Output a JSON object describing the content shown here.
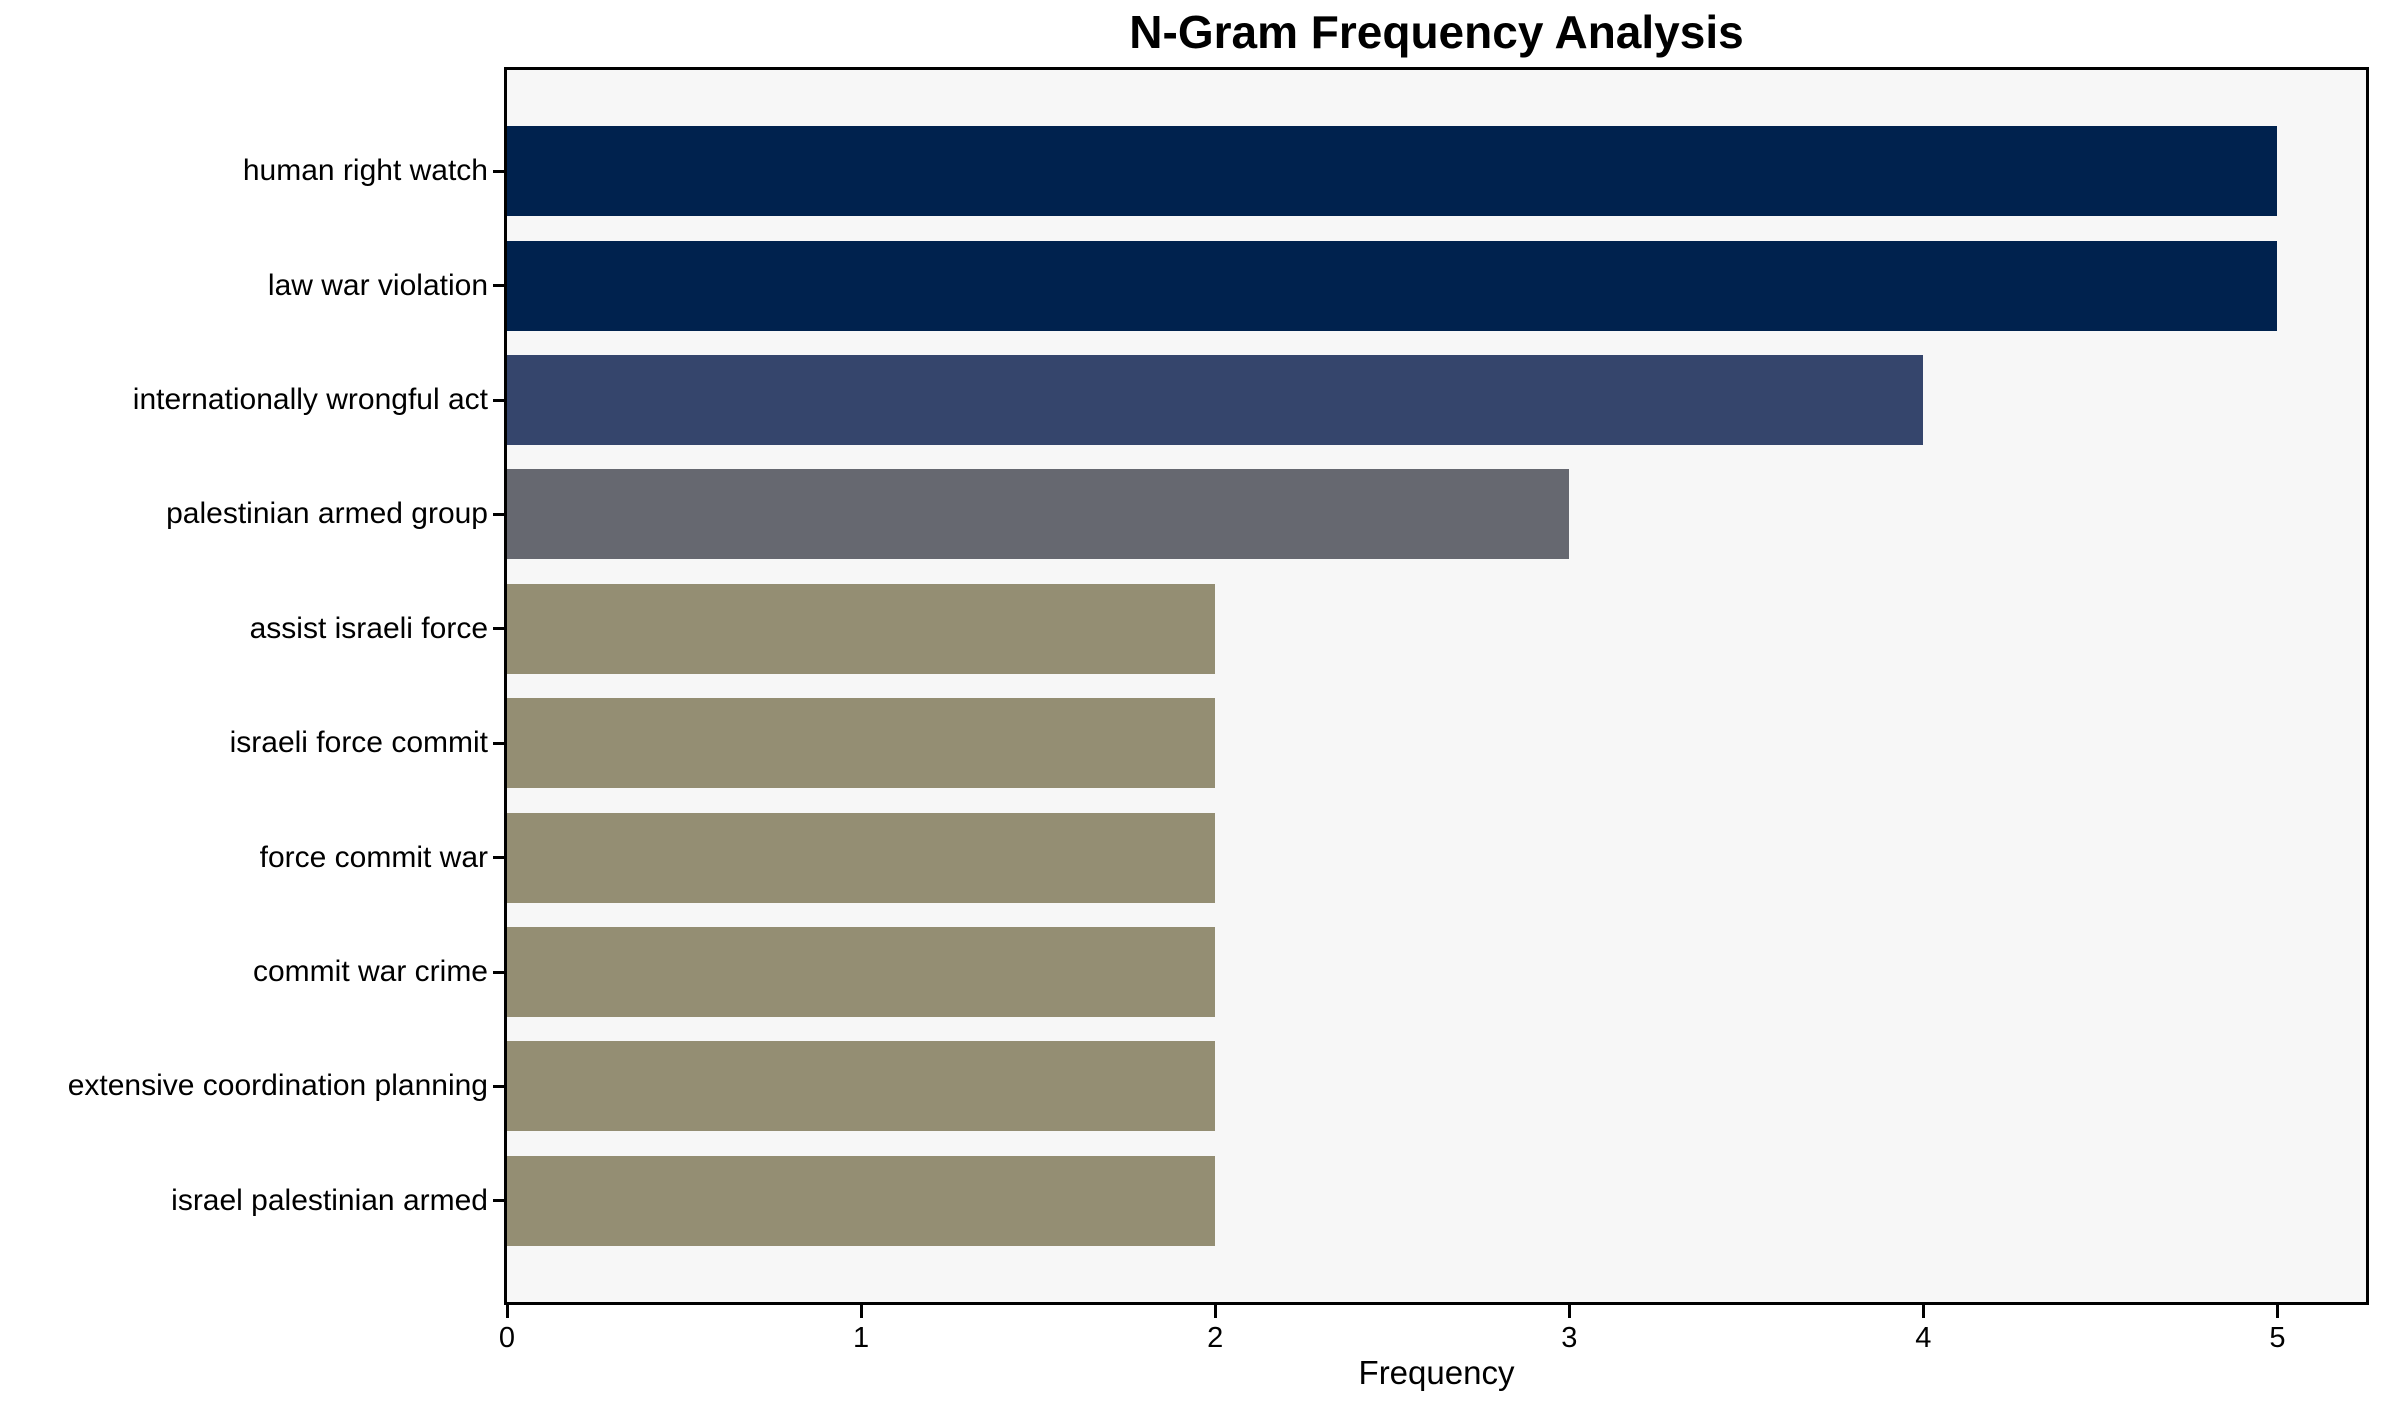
{
  "chart_data": {
    "type": "bar",
    "orientation": "horizontal",
    "title": "N-Gram Frequency Analysis",
    "xlabel": "Frequency",
    "ylabel": "",
    "categories": [
      "human right watch",
      "law war violation",
      "internationally wrongful act",
      "palestinian armed group",
      "assist israeli force",
      "israeli force commit",
      "force commit war",
      "commit war crime",
      "extensive coordination planning",
      "israel palestinian armed"
    ],
    "values": [
      5,
      5,
      4,
      3,
      2,
      2,
      2,
      2,
      2,
      2
    ],
    "bar_colors": [
      "#00224e",
      "#00224e",
      "#35456c",
      "#666870",
      "#948e73",
      "#948e73",
      "#948e73",
      "#948e73",
      "#948e73",
      "#948e73"
    ],
    "xlim": [
      0,
      5.25
    ],
    "x_ticks": [
      "0",
      "1",
      "2",
      "3",
      "4",
      "5"
    ],
    "x_tick_values": [
      0,
      1,
      2,
      3,
      4,
      5
    ],
    "grid": false,
    "legend": "none",
    "plot_background": "#f7f7f7",
    "figure_background": "#ffffff",
    "axis_color": "#000000"
  }
}
